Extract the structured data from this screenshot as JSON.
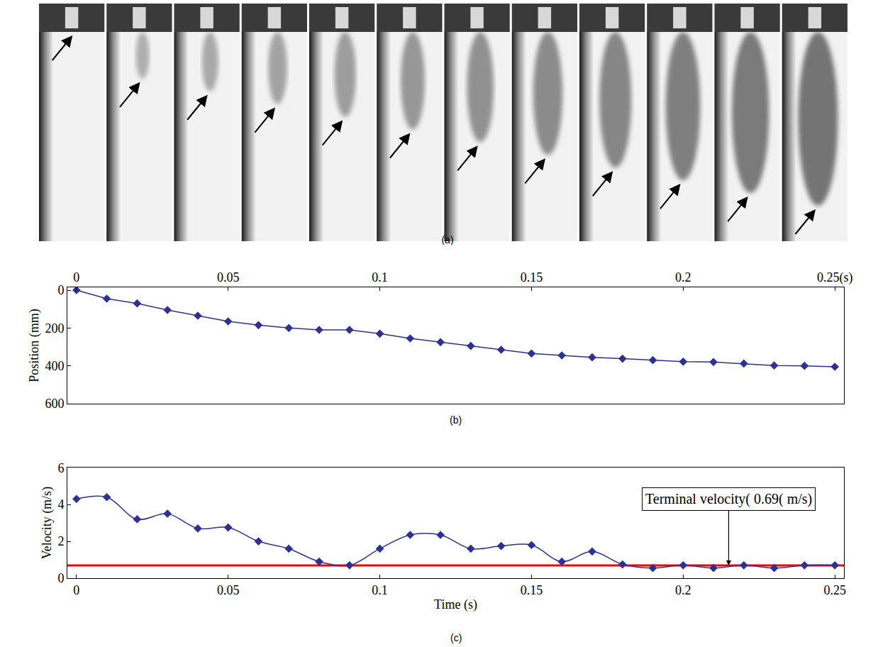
{
  "frames_panel": {
    "label": "(a)",
    "frames": 12
  },
  "chart_data": [
    {
      "type": "line",
      "panel": "(b)",
      "ylabel": "Position (mm)",
      "x": [
        0,
        0.01,
        0.02,
        0.03,
        0.04,
        0.05,
        0.06,
        0.07,
        0.08,
        0.09,
        0.1,
        0.11,
        0.12,
        0.13,
        0.14,
        0.15,
        0.16,
        0.17,
        0.18,
        0.19,
        0.2,
        0.21,
        0.22,
        0.23,
        0.24,
        0.25
      ],
      "values": [
        0,
        45,
        70,
        105,
        135,
        165,
        185,
        200,
        210,
        210,
        230,
        255,
        275,
        295,
        315,
        335,
        345,
        355,
        362,
        370,
        378,
        380,
        388,
        398,
        400,
        405
      ],
      "color": "#2e3192",
      "marker": "diamond",
      "line_style": "solid",
      "xlim": [
        -0.003,
        0.253
      ],
      "xticks": [
        0,
        0.05,
        0.1,
        0.15,
        0.2,
        {
          "value": 0.25,
          "label": "0.25(s)"
        }
      ],
      "ylim": [
        600,
        -15
      ],
      "yticks": [
        0,
        200,
        400,
        600
      ],
      "grid": false
    },
    {
      "type": "line",
      "panel": "(c)",
      "xlabel": "Time (s)",
      "ylabel": "Velocity (m/s)",
      "x": [
        0,
        0.01,
        0.02,
        0.03,
        0.04,
        0.05,
        0.06,
        0.07,
        0.08,
        0.09,
        0.1,
        0.11,
        0.12,
        0.13,
        0.14,
        0.15,
        0.16,
        0.17,
        0.18,
        0.19,
        0.2,
        0.21,
        0.22,
        0.23,
        0.24,
        0.25
      ],
      "values": [
        4.3,
        4.4,
        3.2,
        3.5,
        2.7,
        2.75,
        2.0,
        1.6,
        0.9,
        0.7,
        1.6,
        2.35,
        2.35,
        1.6,
        1.75,
        1.8,
        0.9,
        1.45,
        0.75,
        0.55,
        0.7,
        0.55,
        0.7,
        0.55,
        0.7,
        0.7
      ],
      "color": "#2e3192",
      "marker": "diamond",
      "line_style": "spline",
      "xlim": [
        -0.003,
        0.253
      ],
      "xticks": [
        0,
        0.05,
        0.1,
        0.15,
        0.2,
        0.25
      ],
      "ylim": [
        0,
        6
      ],
      "yticks": [
        0,
        2,
        4,
        6
      ],
      "grid": false,
      "reference_line": {
        "value": 0.69,
        "color": "#ff0000"
      },
      "annotation": {
        "text": "Terminal velocity( 0.69( m/s)",
        "x": 0.215,
        "y": 0.69
      }
    }
  ]
}
